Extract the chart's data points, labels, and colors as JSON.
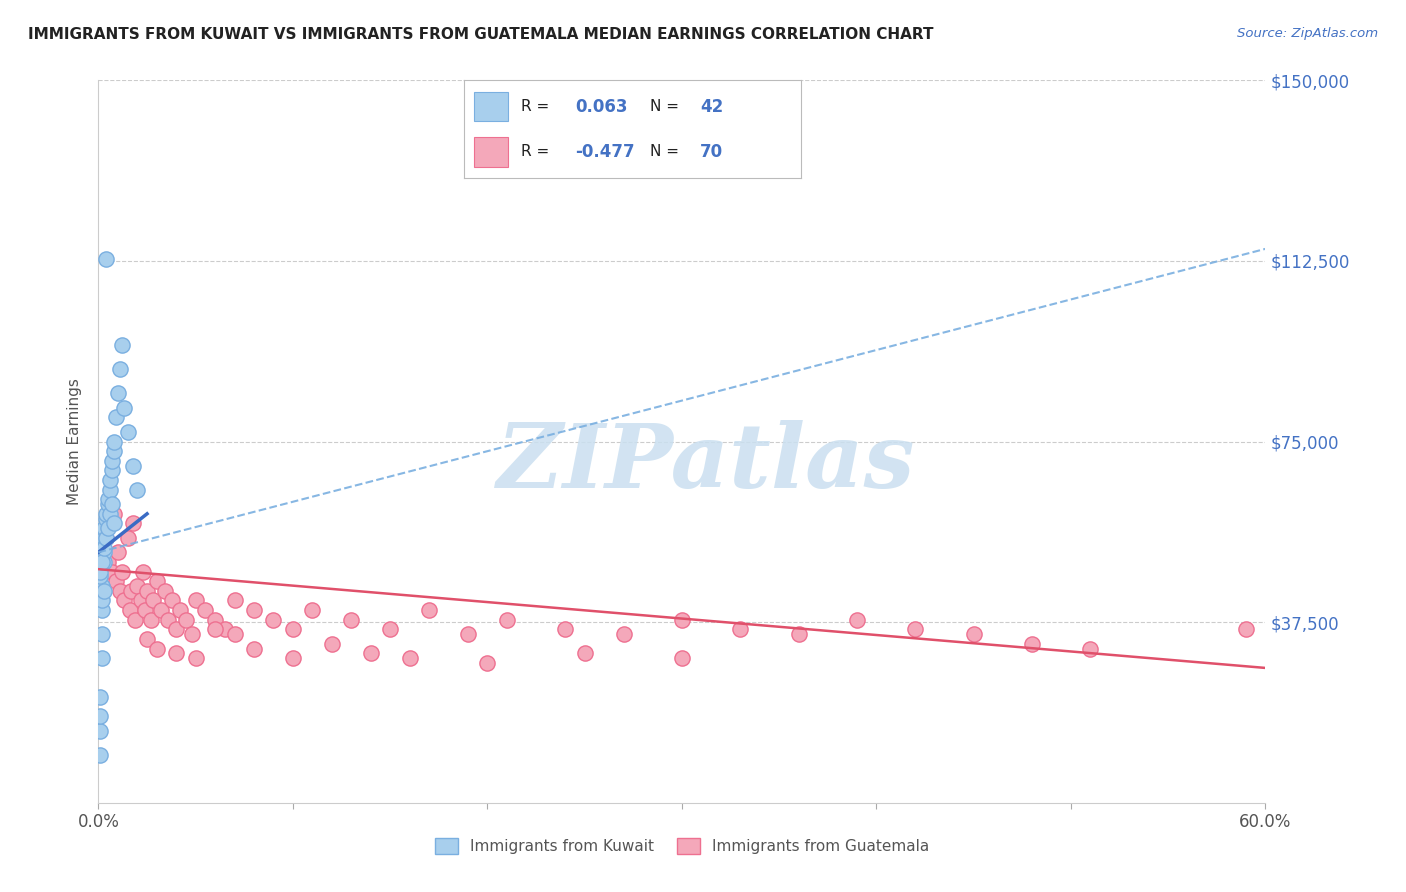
{
  "title": "IMMIGRANTS FROM KUWAIT VS IMMIGRANTS FROM GUATEMALA MEDIAN EARNINGS CORRELATION CHART",
  "source": "Source: ZipAtlas.com",
  "ylabel": "Median Earnings",
  "xlim": [
    0.0,
    0.6
  ],
  "ylim": [
    0,
    150000
  ],
  "yticks": [
    0,
    37500,
    75000,
    112500,
    150000
  ],
  "ytick_labels": [
    "",
    "$37,500",
    "$75,000",
    "$112,500",
    "$150,000"
  ],
  "xtick_positions": [
    0.0,
    0.1,
    0.2,
    0.3,
    0.4,
    0.5,
    0.6
  ],
  "xtick_labels_sparse": [
    "0.0%",
    "",
    "",
    "",
    "",
    "",
    "60.0%"
  ],
  "kuwait_color": "#A8CFED",
  "guatemala_color": "#F4A8BA",
  "kuwait_edge_color": "#7AAFE0",
  "guatemala_edge_color": "#EE7090",
  "kuwait_line_color": "#3A6BC4",
  "guatemala_line_color": "#E0506A",
  "dashed_line_color": "#7AAFE0",
  "background_color": "#FFFFFF",
  "grid_color": "#CCCCCC",
  "title_color": "#222222",
  "axis_label_color": "#555555",
  "ytick_color": "#4472C4",
  "watermark_text": "ZIPatlas",
  "watermark_color": "#CADFF0",
  "legend_label_kuwait": "Immigrants from Kuwait",
  "legend_label_guatemala": "Immigrants from Guatemala",
  "R_kuwait": "0.063",
  "N_kuwait": "42",
  "R_guatemala": "-0.477",
  "N_guatemala": "70",
  "kuwait_scatter_x": [
    0.001,
    0.001,
    0.001,
    0.001,
    0.002,
    0.002,
    0.002,
    0.002,
    0.003,
    0.003,
    0.003,
    0.003,
    0.004,
    0.004,
    0.005,
    0.005,
    0.006,
    0.006,
    0.007,
    0.007,
    0.008,
    0.008,
    0.009,
    0.01,
    0.011,
    0.012,
    0.013,
    0.015,
    0.018,
    0.02,
    0.001,
    0.001,
    0.002,
    0.003,
    0.004,
    0.005,
    0.006,
    0.007,
    0.008,
    0.002,
    0.003,
    0.004
  ],
  "kuwait_scatter_y": [
    10000,
    15000,
    18000,
    22000,
    30000,
    35000,
    40000,
    45000,
    50000,
    52000,
    55000,
    57000,
    59000,
    60000,
    62000,
    63000,
    65000,
    67000,
    69000,
    71000,
    73000,
    75000,
    80000,
    85000,
    90000,
    95000,
    82000,
    77000,
    70000,
    65000,
    47000,
    48000,
    50000,
    53000,
    55000,
    57000,
    60000,
    62000,
    58000,
    42000,
    44000,
    113000
  ],
  "guatemala_scatter_x": [
    0.004,
    0.005,
    0.006,
    0.007,
    0.008,
    0.009,
    0.01,
    0.011,
    0.012,
    0.013,
    0.015,
    0.016,
    0.017,
    0.018,
    0.019,
    0.02,
    0.022,
    0.023,
    0.024,
    0.025,
    0.027,
    0.028,
    0.03,
    0.032,
    0.034,
    0.036,
    0.038,
    0.04,
    0.042,
    0.045,
    0.048,
    0.05,
    0.055,
    0.06,
    0.065,
    0.07,
    0.08,
    0.09,
    0.1,
    0.11,
    0.13,
    0.15,
    0.17,
    0.19,
    0.21,
    0.24,
    0.27,
    0.3,
    0.33,
    0.36,
    0.39,
    0.42,
    0.45,
    0.48,
    0.51,
    0.025,
    0.03,
    0.04,
    0.05,
    0.06,
    0.07,
    0.08,
    0.1,
    0.12,
    0.14,
    0.16,
    0.2,
    0.25,
    0.3,
    0.59
  ],
  "guatemala_scatter_y": [
    55000,
    50000,
    58000,
    48000,
    60000,
    46000,
    52000,
    44000,
    48000,
    42000,
    55000,
    40000,
    44000,
    58000,
    38000,
    45000,
    42000,
    48000,
    40000,
    44000,
    38000,
    42000,
    46000,
    40000,
    44000,
    38000,
    42000,
    36000,
    40000,
    38000,
    35000,
    42000,
    40000,
    38000,
    36000,
    42000,
    40000,
    38000,
    36000,
    40000,
    38000,
    36000,
    40000,
    35000,
    38000,
    36000,
    35000,
    38000,
    36000,
    35000,
    38000,
    36000,
    35000,
    33000,
    32000,
    34000,
    32000,
    31000,
    30000,
    36000,
    35000,
    32000,
    30000,
    33000,
    31000,
    30000,
    29000,
    31000,
    30000,
    36000
  ],
  "kuwait_trend_x": [
    0.0,
    0.025
  ],
  "kuwait_trend_y": [
    52000,
    60000
  ],
  "dashed_trend_x": [
    0.0,
    0.6
  ],
  "dashed_trend_y": [
    52000,
    115000
  ],
  "guatemala_trend_x": [
    0.0,
    0.6
  ],
  "guatemala_trend_y": [
    48500,
    28000
  ]
}
